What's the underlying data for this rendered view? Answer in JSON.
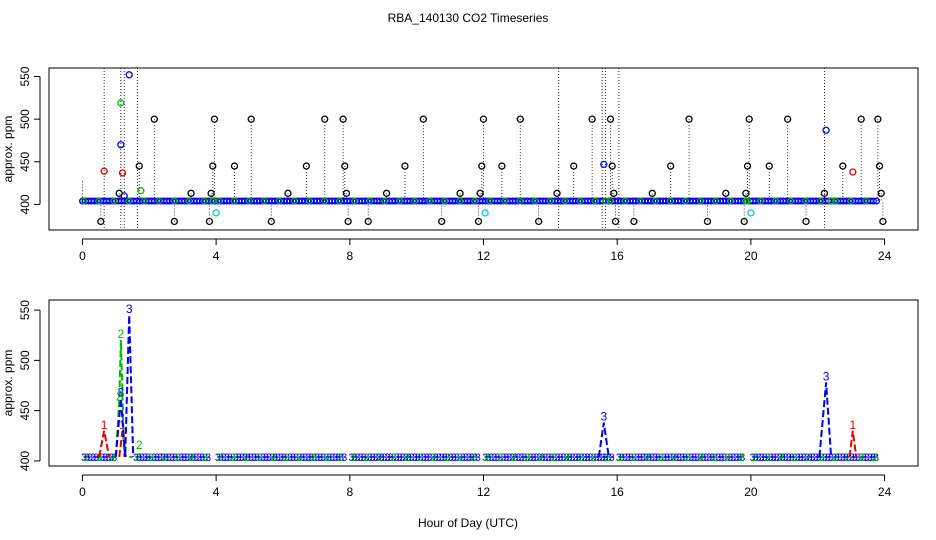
{
  "figure": {
    "title": "RBA_140130  CO2 Timeseries",
    "xlabel": "Hour of Day (UTC)"
  },
  "colors": {
    "black": "#000000",
    "red": "#e00000",
    "green": "#00bb00",
    "blue": "#0000ee",
    "cyan": "#00d0d0"
  },
  "chart_data": [
    {
      "type": "scatter",
      "title": "",
      "xlabel": "",
      "ylabel": "approx. ppm",
      "xlim": [
        -1,
        25
      ],
      "ylim": [
        370,
        560
      ],
      "x_ticks": [
        0,
        4,
        8,
        12,
        16,
        20,
        24
      ],
      "y_ticks": [
        400,
        450,
        500,
        550
      ],
      "baseline": {
        "value": 404,
        "x_start": 0,
        "x_end": 23.8,
        "segments_gap_at": [],
        "color": "#0000ee"
      },
      "series": [
        {
          "color": "#000000",
          "points": [
            [
              0.55,
              380
            ],
            [
              1.1,
              413
            ],
            [
              1.7,
              445
            ],
            [
              2.15,
              500
            ],
            [
              2.75,
              380
            ],
            [
              3.25,
              413
            ],
            [
              3.8,
              380
            ],
            [
              3.85,
              413
            ],
            [
              3.9,
              445
            ],
            [
              3.95,
              500
            ],
            [
              4.55,
              445
            ],
            [
              5.05,
              500
            ],
            [
              5.65,
              380
            ],
            [
              6.15,
              413
            ],
            [
              6.7,
              445
            ],
            [
              7.25,
              500
            ],
            [
              7.8,
              500
            ],
            [
              7.85,
              445
            ],
            [
              7.9,
              413
            ],
            [
              7.95,
              380
            ],
            [
              8.55,
              380
            ],
            [
              9.1,
              413
            ],
            [
              9.65,
              445
            ],
            [
              10.2,
              500
            ],
            [
              10.75,
              380
            ],
            [
              11.3,
              413
            ],
            [
              11.85,
              380
            ],
            [
              11.9,
              413
            ],
            [
              11.95,
              445
            ],
            [
              12.0,
              500
            ],
            [
              12.55,
              445
            ],
            [
              13.1,
              500
            ],
            [
              13.65,
              380
            ],
            [
              14.2,
              413
            ],
            [
              14.7,
              445
            ],
            [
              15.25,
              500
            ],
            [
              15.8,
              500
            ],
            [
              15.85,
              445
            ],
            [
              15.9,
              413
            ],
            [
              15.95,
              380
            ],
            [
              16.5,
              380
            ],
            [
              17.05,
              413
            ],
            [
              17.6,
              445
            ],
            [
              18.15,
              500
            ],
            [
              18.7,
              380
            ],
            [
              19.25,
              413
            ],
            [
              19.8,
              380
            ],
            [
              19.85,
              413
            ],
            [
              19.9,
              445
            ],
            [
              19.95,
              500
            ],
            [
              20.55,
              445
            ],
            [
              21.1,
              500
            ],
            [
              21.65,
              380
            ],
            [
              22.2,
              413
            ],
            [
              22.75,
              445
            ],
            [
              23.3,
              500
            ],
            [
              23.8,
              500
            ],
            [
              23.85,
              445
            ],
            [
              23.9,
              413
            ],
            [
              23.95,
              380
            ]
          ]
        },
        {
          "color": "#e00000",
          "points": [
            [
              0.65,
              439
            ],
            [
              1.2,
              437
            ],
            [
              23.05,
              438
            ]
          ]
        },
        {
          "color": "#00bb00",
          "points": [
            [
              1.15,
              519
            ],
            [
              1.75,
              416
            ],
            [
              3.9,
              404
            ],
            [
              15.65,
              404
            ],
            [
              19.9,
              404
            ],
            [
              22.4,
              404
            ]
          ]
        },
        {
          "color": "#0000ee",
          "points": [
            [
              1.15,
              470
            ],
            [
              1.25,
              410
            ],
            [
              1.4,
              552
            ],
            [
              15.6,
              447
            ],
            [
              22.25,
              487
            ]
          ]
        },
        {
          "color": "#00d0d0",
          "points": [
            [
              4.0,
              390
            ],
            [
              12.05,
              390
            ],
            [
              20.0,
              390
            ]
          ]
        }
      ],
      "vlines": [
        {
          "x": 0.0,
          "y0": 400,
          "y1": 427
        },
        {
          "x": 0.65,
          "y0": 370,
          "y1": 560
        },
        {
          "x": 1.15,
          "y0": 370,
          "y1": 560
        },
        {
          "x": 1.25,
          "y0": 370,
          "y1": 560
        },
        {
          "x": 1.65,
          "y0": 370,
          "y1": 560
        },
        {
          "x": 14.25,
          "y0": 370,
          "y1": 560
        },
        {
          "x": 15.55,
          "y0": 370,
          "y1": 560
        },
        {
          "x": 15.65,
          "y0": 370,
          "y1": 560
        },
        {
          "x": 16.05,
          "y0": 370,
          "y1": 560
        },
        {
          "x": 22.2,
          "y0": 370,
          "y1": 560
        }
      ]
    },
    {
      "type": "line",
      "title": "",
      "xlabel": "Hour of Day (UTC)",
      "ylabel": "approx. ppm",
      "xlim": [
        -1,
        25
      ],
      "ylim": [
        395,
        560
      ],
      "x_ticks": [
        0,
        4,
        8,
        12,
        16,
        20,
        24
      ],
      "y_ticks": [
        400,
        450,
        500,
        550
      ],
      "baseline": {
        "value": 404,
        "segments": [
          [
            0.05,
            1.0
          ],
          [
            1.6,
            3.8
          ],
          [
            4.05,
            7.85
          ],
          [
            8.05,
            11.85
          ],
          [
            12.05,
            15.9
          ],
          [
            16.05,
            19.8
          ],
          [
            20.05,
            23.8
          ]
        ],
        "label": "3"
      },
      "series": [
        {
          "name": "1",
          "color": "#e00000",
          "segments": [
            [
              [
                0.5,
                404
              ],
              [
                0.65,
                430
              ],
              [
                0.8,
                404
              ]
            ],
            [
              [
                1.1,
                404
              ],
              [
                1.2,
                430
              ],
              [
                1.3,
                404
              ]
            ],
            [
              [
                22.95,
                404
              ],
              [
                23.05,
                430
              ],
              [
                23.15,
                404
              ]
            ]
          ],
          "labels": [
            [
              0.65,
              430
            ],
            [
              1.2,
              430
            ],
            [
              23.05,
              430
            ]
          ]
        },
        {
          "name": "2",
          "color": "#00bb00",
          "segments": [
            [
              [
                1.0,
                404
              ],
              [
                1.1,
                458
              ],
              [
                1.15,
                520
              ],
              [
                1.25,
                404
              ]
            ],
            [
              [
                1.4,
                404
              ],
              [
                1.5,
                404
              ]
            ]
          ],
          "labels": [
            [
              1.1,
              458
            ],
            [
              1.15,
              520
            ],
            [
              1.7,
              410
            ]
          ]
        },
        {
          "name": "3",
          "color": "#0000ee",
          "segments": [
            [
              [
                1.0,
                404
              ],
              [
                1.15,
                462
              ],
              [
                1.28,
                404
              ],
              [
                1.4,
                545
              ],
              [
                1.52,
                404
              ]
            ],
            [
              [
                15.45,
                404
              ],
              [
                15.6,
                438
              ],
              [
                15.75,
                404
              ]
            ],
            [
              [
                22.05,
                404
              ],
              [
                22.25,
                478
              ],
              [
                22.4,
                404
              ]
            ]
          ],
          "labels": [
            [
              1.15,
              462
            ],
            [
              1.4,
              545
            ],
            [
              15.6,
              438
            ],
            [
              22.25,
              478
            ]
          ]
        }
      ]
    }
  ]
}
